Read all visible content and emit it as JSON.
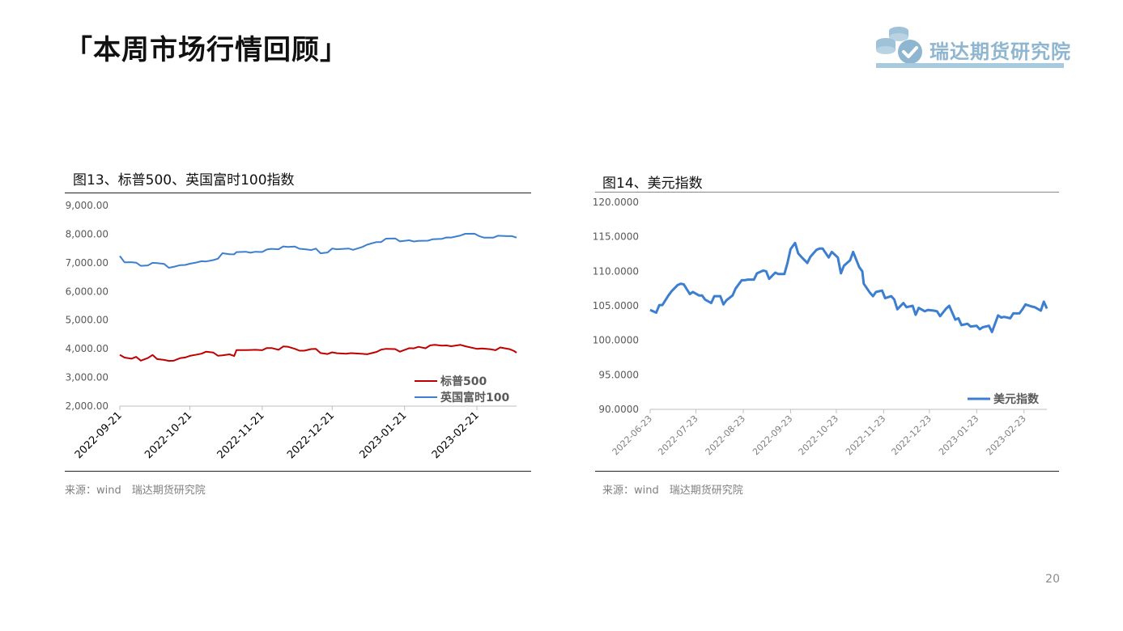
{
  "page": {
    "title": "「本周市场行情回顾」",
    "page_number": "20"
  },
  "logo": {
    "text": "瑞达期货研究院",
    "icon": "coins-check-icon",
    "color": "#8fb6d0"
  },
  "left_panel": {
    "title": "图13、标普500、英国富时100指数",
    "source": "来源：wind　瑞达期货研究院"
  },
  "right_panel": {
    "title": "图14、美元指数",
    "source": "来源：wind　瑞达期货研究院"
  },
  "chart_data": [
    {
      "type": "line",
      "title": "图13、标普500、英国富时100指数",
      "x_ticks": [
        "2022-09-21",
        "2022-10-21",
        "2022-11-21",
        "2022-12-21",
        "2023-01-21",
        "2023-02-21"
      ],
      "x_range": [
        "2022-09-21",
        "2023-03-10"
      ],
      "y_ticks": [
        "9,000.00",
        "8,000.00",
        "7,000.00",
        "6,000.00",
        "5,000.00",
        "4,000.00",
        "3,000.00",
        "2,000.00"
      ],
      "ylim": [
        2000,
        9000
      ],
      "legend_position": "bottom-right",
      "grid": false,
      "series": [
        {
          "name": "标普500",
          "color": "#c00000",
          "x": [
            "2022-09-21",
            "2022-09-23",
            "2022-09-26",
            "2022-09-28",
            "2022-09-30",
            "2022-10-03",
            "2022-10-05",
            "2022-10-07",
            "2022-10-10",
            "2022-10-12",
            "2022-10-14",
            "2022-10-17",
            "2022-10-19",
            "2022-10-21",
            "2022-10-24",
            "2022-10-26",
            "2022-10-28",
            "2022-10-31",
            "2022-11-02",
            "2022-11-04",
            "2022-11-07",
            "2022-11-09",
            "2022-11-10",
            "2022-11-14",
            "2022-11-16",
            "2022-11-18",
            "2022-11-21",
            "2022-11-23",
            "2022-11-25",
            "2022-11-28",
            "2022-11-30",
            "2022-12-02",
            "2022-12-05",
            "2022-12-07",
            "2022-12-09",
            "2022-12-12",
            "2022-12-14",
            "2022-12-16",
            "2022-12-19",
            "2022-12-21",
            "2022-12-23",
            "2022-12-27",
            "2022-12-29",
            "2023-01-03",
            "2023-01-05",
            "2023-01-09",
            "2023-01-11",
            "2023-01-13",
            "2023-01-17",
            "2023-01-19",
            "2023-01-23",
            "2023-01-25",
            "2023-01-27",
            "2023-01-30",
            "2023-02-01",
            "2023-02-03",
            "2023-02-06",
            "2023-02-08",
            "2023-02-10",
            "2023-02-14",
            "2023-02-16",
            "2023-02-21",
            "2023-02-23",
            "2023-02-27",
            "2023-03-01",
            "2023-03-03",
            "2023-03-07",
            "2023-03-09",
            "2023-03-10"
          ],
          "values": [
            3790,
            3693,
            3655,
            3719,
            3586,
            3678,
            3783,
            3640,
            3612,
            3577,
            3583,
            3677,
            3695,
            3752,
            3797,
            3830,
            3901,
            3872,
            3759,
            3771,
            3807,
            3748,
            3956,
            3957,
            3959,
            3965,
            3950,
            4028,
            4026,
            3964,
            4080,
            4072,
            3998,
            3933,
            3934,
            3990,
            3995,
            3852,
            3818,
            3878,
            3845,
            3829,
            3849,
            3824,
            3808,
            3892,
            3969,
            3999,
            3990,
            3899,
            4020,
            4016,
            4070,
            4018,
            4120,
            4136,
            4111,
            4117,
            4090,
            4137,
            4090,
            3997,
            4012,
            3982,
            3951,
            4046,
            3986,
            3918,
            3862
          ]
        },
        {
          "name": "英国富时100",
          "color": "#3c7fd0",
          "x": [
            "2022-09-21",
            "2022-09-23",
            "2022-09-26",
            "2022-09-28",
            "2022-09-30",
            "2022-10-03",
            "2022-10-05",
            "2022-10-07",
            "2022-10-10",
            "2022-10-12",
            "2022-10-14",
            "2022-10-17",
            "2022-10-19",
            "2022-10-21",
            "2022-10-24",
            "2022-10-26",
            "2022-10-28",
            "2022-10-31",
            "2022-11-02",
            "2022-11-04",
            "2022-11-07",
            "2022-11-09",
            "2022-11-10",
            "2022-11-14",
            "2022-11-16",
            "2022-11-18",
            "2022-11-21",
            "2022-11-23",
            "2022-11-25",
            "2022-11-28",
            "2022-11-30",
            "2022-12-02",
            "2022-12-05",
            "2022-12-07",
            "2022-12-09",
            "2022-12-12",
            "2022-12-14",
            "2022-12-16",
            "2022-12-19",
            "2022-12-21",
            "2022-12-23",
            "2022-12-28",
            "2022-12-30",
            "2023-01-03",
            "2023-01-05",
            "2023-01-09",
            "2023-01-11",
            "2023-01-13",
            "2023-01-17",
            "2023-01-19",
            "2023-01-23",
            "2023-01-25",
            "2023-01-27",
            "2023-01-31",
            "2023-02-02",
            "2023-02-06",
            "2023-02-08",
            "2023-02-10",
            "2023-02-14",
            "2023-02-16",
            "2023-02-20",
            "2023-02-22",
            "2023-02-24",
            "2023-02-28",
            "2023-03-02",
            "2023-03-06",
            "2023-03-08",
            "2023-03-10"
          ],
          "values": [
            7237,
            7018,
            7020,
            7005,
            6893,
            6908,
            6998,
            6991,
            6959,
            6826,
            6858,
            6920,
            6925,
            6969,
            7013,
            7056,
            7047,
            7095,
            7144,
            7335,
            7299,
            7296,
            7375,
            7385,
            7351,
            7385,
            7376,
            7465,
            7486,
            7474,
            7573,
            7556,
            7567,
            7489,
            7476,
            7446,
            7495,
            7332,
            7361,
            7497,
            7473,
            7497,
            7452,
            7554,
            7633,
            7725,
            7724,
            7844,
            7851,
            7747,
            7785,
            7744,
            7765,
            7772,
            7820,
            7836,
            7885,
            7882,
            7953,
            8012,
            8014,
            7930,
            7879,
            7876,
            7944,
            7929,
            7929,
            7880
          ]
        }
      ]
    },
    {
      "type": "line",
      "title": "图14、美元指数",
      "x_ticks": [
        "2022-06-23",
        "2022-07-23",
        "2022-08-23",
        "2022-09-23",
        "2022-10-23",
        "2022-11-23",
        "2022-12-23",
        "2023-01-23",
        "2023-02-23"
      ],
      "x_range": [
        "2022-06-23",
        "2023-03-10"
      ],
      "y_ticks": [
        "120.0000",
        "115.0000",
        "110.0000",
        "105.0000",
        "100.0000",
        "95.0000",
        "90.0000"
      ],
      "ylim": [
        90,
        120
      ],
      "legend_position": "bottom-right",
      "grid": false,
      "series": [
        {
          "name": "美元指数",
          "color": "#3c7fd0",
          "x": [
            "2022-06-23",
            "2022-06-27",
            "2022-06-29",
            "2022-07-01",
            "2022-07-05",
            "2022-07-07",
            "2022-07-11",
            "2022-07-13",
            "2022-07-15",
            "2022-07-19",
            "2022-07-21",
            "2022-07-25",
            "2022-07-27",
            "2022-07-29",
            "2022-08-02",
            "2022-08-04",
            "2022-08-08",
            "2022-08-10",
            "2022-08-12",
            "2022-08-16",
            "2022-08-18",
            "2022-08-22",
            "2022-08-24",
            "2022-08-26",
            "2022-08-30",
            "2022-09-01",
            "2022-09-05",
            "2022-09-07",
            "2022-09-09",
            "2022-09-13",
            "2022-09-15",
            "2022-09-19",
            "2022-09-21",
            "2022-09-23",
            "2022-09-26",
            "2022-09-28",
            "2022-09-30",
            "2022-10-04",
            "2022-10-06",
            "2022-10-10",
            "2022-10-12",
            "2022-10-14",
            "2022-10-18",
            "2022-10-20",
            "2022-10-24",
            "2022-10-26",
            "2022-10-28",
            "2022-11-01",
            "2022-11-03",
            "2022-11-07",
            "2022-11-09",
            "2022-11-10",
            "2022-11-14",
            "2022-11-16",
            "2022-11-18",
            "2022-11-22",
            "2022-11-24",
            "2022-11-28",
            "2022-11-30",
            "2022-12-02",
            "2022-12-06",
            "2022-12-08",
            "2022-12-12",
            "2022-12-14",
            "2022-12-16",
            "2022-12-20",
            "2022-12-22",
            "2022-12-26",
            "2022-12-28",
            "2022-12-30",
            "2023-01-03",
            "2023-01-05",
            "2023-01-09",
            "2023-01-11",
            "2023-01-13",
            "2023-01-17",
            "2023-01-19",
            "2023-01-23",
            "2023-01-25",
            "2023-01-27",
            "2023-01-31",
            "2023-02-02",
            "2023-02-06",
            "2023-02-08",
            "2023-02-10",
            "2023-02-14",
            "2023-02-16",
            "2023-02-20",
            "2023-02-22",
            "2023-02-24",
            "2023-02-28",
            "2023-03-02",
            "2023-03-06",
            "2023-03-08",
            "2023-03-10"
          ],
          "values": [
            104.4,
            104.0,
            105.1,
            105.1,
            106.5,
            107.1,
            108.0,
            108.2,
            108.1,
            106.7,
            107.0,
            106.5,
            106.5,
            105.9,
            105.4,
            106.4,
            106.4,
            105.2,
            105.8,
            106.5,
            107.5,
            108.7,
            108.7,
            108.8,
            108.8,
            109.7,
            110.1,
            110.0,
            108.9,
            109.8,
            109.6,
            109.6,
            111.2,
            113.2,
            114.1,
            112.6,
            112.1,
            111.2,
            112.1,
            113.1,
            113.3,
            113.3,
            112.0,
            112.8,
            112.0,
            109.7,
            110.8,
            111.6,
            112.8,
            110.6,
            110.0,
            108.2,
            106.9,
            106.4,
            107.0,
            107.2,
            106.1,
            106.4,
            105.9,
            104.5,
            105.4,
            104.8,
            105.0,
            103.7,
            104.7,
            104.2,
            104.4,
            104.3,
            104.2,
            103.5,
            104.6,
            105.0,
            103.0,
            103.2,
            102.2,
            102.4,
            102.0,
            102.1,
            101.6,
            101.9,
            102.1,
            101.2,
            103.6,
            103.3,
            103.4,
            103.2,
            103.9,
            103.9,
            104.5,
            105.2,
            104.9,
            104.8,
            104.3,
            105.6,
            104.6
          ]
        }
      ]
    }
  ]
}
